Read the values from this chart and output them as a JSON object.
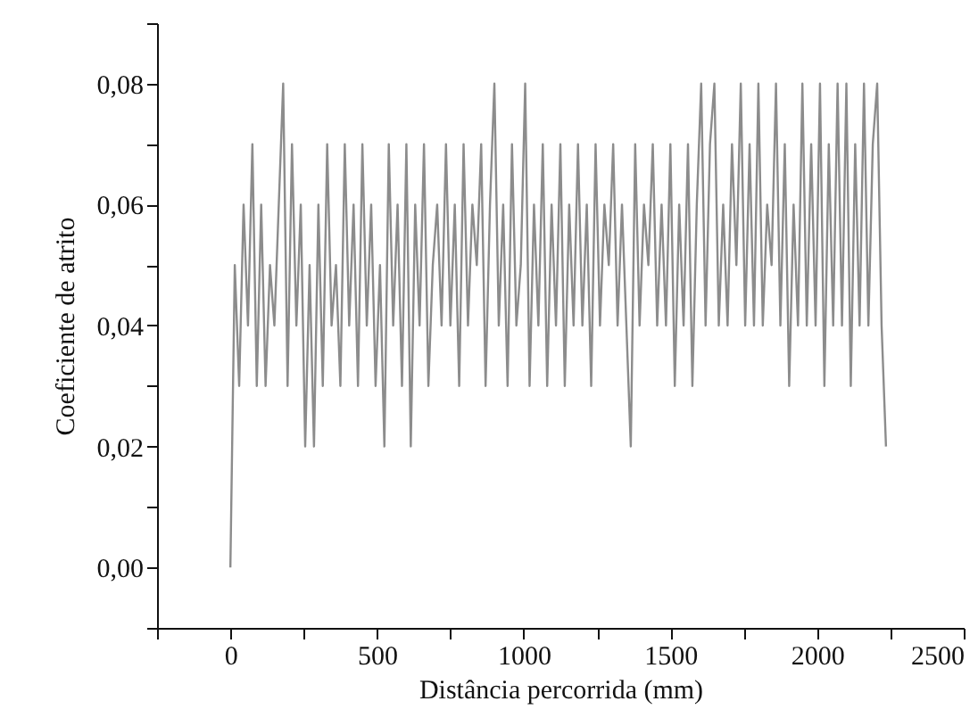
{
  "chart_data": {
    "type": "line",
    "xlabel": "Distância percorrida (mm)",
    "ylabel": "Coeficiente de atrito",
    "xlim": [
      -250,
      2500
    ],
    "xticks": [
      {
        "value": -250,
        "label": null
      },
      0,
      {
        "value": 250,
        "label": null
      },
      500,
      {
        "value": 750,
        "label": null
      },
      1000,
      {
        "value": 1250,
        "label": null
      },
      1500,
      {
        "value": 1750,
        "label": null
      },
      2000,
      {
        "value": 2250,
        "label": null
      },
      2500
    ],
    "ylim": [
      -0.01,
      0.09
    ],
    "yticks": [
      {
        "value": -0.01,
        "label": null
      },
      {
        "value": 0,
        "label": "0,00"
      },
      {
        "value": 0.01,
        "label": null
      },
      {
        "value": 0.02,
        "label": "0,02"
      },
      {
        "value": 0.03,
        "label": null
      },
      {
        "value": 0.04,
        "label": "0,04"
      },
      {
        "value": 0.05,
        "label": null
      },
      {
        "value": 0.06,
        "label": "0,06"
      },
      {
        "value": 0.07,
        "label": null
      },
      {
        "value": 0.08,
        "label": "0,08"
      },
      {
        "value": 0.09,
        "label": null
      }
    ],
    "grid": false,
    "marker": "none",
    "line_style": "solid",
    "x": [
      0,
      15,
      30,
      45,
      60,
      75,
      90,
      105,
      120,
      135,
      150,
      165,
      180,
      195,
      210,
      225,
      240,
      255,
      270,
      285,
      300,
      315,
      330,
      345,
      360,
      375,
      390,
      405,
      420,
      435,
      450,
      465,
      480,
      495,
      510,
      525,
      540,
      555,
      570,
      585,
      600,
      615,
      630,
      645,
      660,
      675,
      690,
      705,
      720,
      735,
      750,
      765,
      780,
      795,
      810,
      825,
      840,
      855,
      870,
      885,
      900,
      915,
      930,
      945,
      960,
      975,
      990,
      1005,
      1020,
      1035,
      1050,
      1065,
      1080,
      1095,
      1110,
      1125,
      1140,
      1155,
      1170,
      1185,
      1200,
      1215,
      1230,
      1245,
      1260,
      1275,
      1290,
      1305,
      1320,
      1335,
      1350,
      1365,
      1380,
      1395,
      1410,
      1425,
      1440,
      1455,
      1470,
      1485,
      1500,
      1515,
      1530,
      1545,
      1560,
      1575,
      1590,
      1605,
      1620,
      1635,
      1650,
      1665,
      1680,
      1695,
      1710,
      1725,
      1740,
      1755,
      1770,
      1785,
      1800,
      1815,
      1830,
      1845,
      1860,
      1875,
      1890,
      1905,
      1920,
      1935,
      1950,
      1965,
      1980,
      1995,
      2010,
      2025,
      2040,
      2055,
      2070,
      2085,
      2100,
      2115,
      2130,
      2145,
      2160,
      2175,
      2190,
      2205,
      2220,
      2235
    ],
    "series": [
      {
        "color": "#8c8c8c",
        "values": [
          0,
          0.05,
          0.03,
          0.06,
          0.04,
          0.07,
          0.03,
          0.06,
          0.03,
          0.05,
          0.04,
          0.06,
          0.08,
          0.03,
          0.07,
          0.04,
          0.06,
          0.02,
          0.05,
          0.02,
          0.06,
          0.03,
          0.07,
          0.04,
          0.05,
          0.03,
          0.07,
          0.04,
          0.06,
          0.03,
          0.07,
          0.04,
          0.06,
          0.03,
          0.05,
          0.02,
          0.07,
          0.04,
          0.06,
          0.03,
          0.07,
          0.02,
          0.06,
          0.04,
          0.07,
          0.03,
          0.05,
          0.06,
          0.04,
          0.07,
          0.04,
          0.06,
          0.03,
          0.07,
          0.04,
          0.06,
          0.05,
          0.07,
          0.03,
          0.06,
          0.08,
          0.04,
          0.06,
          0.03,
          0.07,
          0.04,
          0.05,
          0.08,
          0.03,
          0.06,
          0.04,
          0.07,
          0.03,
          0.06,
          0.04,
          0.07,
          0.03,
          0.06,
          0.04,
          0.07,
          0.04,
          0.06,
          0.03,
          0.07,
          0.04,
          0.06,
          0.05,
          0.07,
          0.04,
          0.06,
          0.04,
          0.02,
          0.07,
          0.04,
          0.06,
          0.05,
          0.07,
          0.04,
          0.06,
          0.04,
          0.07,
          0.03,
          0.06,
          0.04,
          0.07,
          0.03,
          0.06,
          0.08,
          0.04,
          0.07,
          0.08,
          0.04,
          0.06,
          0.04,
          0.07,
          0.05,
          0.08,
          0.04,
          0.07,
          0.04,
          0.08,
          0.04,
          0.06,
          0.05,
          0.08,
          0.04,
          0.07,
          0.03,
          0.06,
          0.04,
          0.08,
          0.04,
          0.07,
          0.04,
          0.08,
          0.03,
          0.07,
          0.04,
          0.08,
          0.04,
          0.08,
          0.03,
          0.07,
          0.04,
          0.08,
          0.04,
          0.07,
          0.08,
          0.04,
          0.02
        ]
      }
    ]
  }
}
